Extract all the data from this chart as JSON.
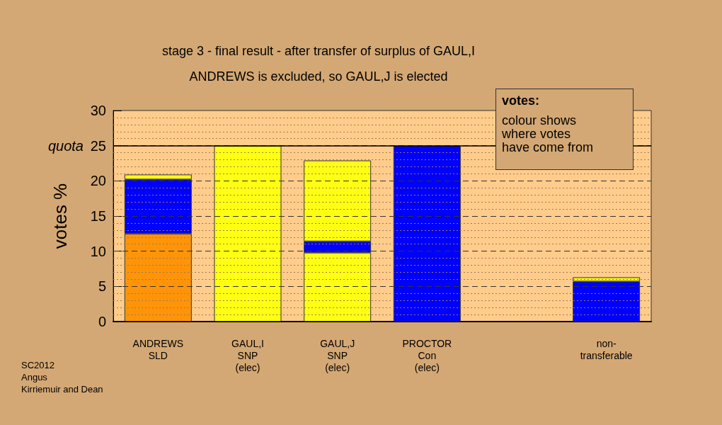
{
  "chart_data": {
    "type": "bar",
    "stacked": true,
    "title": "stage 3 - final result - after transfer of surplus of GAUL,I",
    "subtitle": "ANDREWS is excluded, so GAUL,J is elected",
    "ylabel": "votes %",
    "categories": [
      "ANDREWS\nSLD",
      "GAUL,I\nSNP\n(elec)",
      "GAUL,J\nSNP\n(elec)",
      "PROCTOR\nCon\n(elec)",
      null,
      "non-\ntransferable"
    ],
    "series": [
      {
        "values": [
          12.5,
          25,
          9.8,
          25,
          null,
          5.7
        ],
        "colors": [
          "#ff9408",
          "#ffff14",
          "#ffff14",
          "#0000ff",
          "#0000ff",
          "#0000ff"
        ]
      },
      {
        "values": [
          7.7,
          null,
          1.6,
          null,
          null,
          0.6
        ],
        "colors": [
          "#0000ff",
          "#0000ff",
          "#0000ff",
          "#0000ff",
          "#0000ff",
          "#ffff14"
        ]
      },
      {
        "values": [
          0.7,
          null,
          11.5,
          null,
          null,
          null
        ],
        "colors": [
          "#ffff14",
          "#ffff14",
          "#ffff14",
          "#ffff14",
          "#ffff14",
          "#ffff14"
        ]
      }
    ],
    "ylim": [
      0,
      30
    ],
    "yticks": [
      0,
      {
        "value": 1,
        "label": null
      },
      {
        "value": 2,
        "label": null
      },
      {
        "value": 3,
        "label": null
      },
      {
        "value": 4,
        "label": null
      },
      5,
      {
        "value": 6,
        "label": null
      },
      {
        "value": 7,
        "label": null
      },
      {
        "value": 8,
        "label": null
      },
      {
        "value": 9,
        "label": null
      },
      10,
      {
        "value": 11,
        "label": null
      },
      {
        "value": 12,
        "label": null
      },
      {
        "value": 13,
        "label": null
      },
      {
        "value": 14,
        "label": null
      },
      15,
      {
        "value": 16,
        "label": null
      },
      {
        "value": 17,
        "label": null
      },
      {
        "value": 18,
        "label": null
      },
      {
        "value": 19,
        "label": null
      },
      20,
      {
        "value": 21,
        "label": null
      },
      {
        "value": 22,
        "label": null
      },
      {
        "value": 23,
        "label": null
      },
      {
        "value": 24,
        "label": null
      },
      25,
      {
        "value": 26,
        "label": null
      },
      {
        "value": 27,
        "label": null
      },
      {
        "value": 28,
        "label": null
      },
      {
        "value": 29,
        "label": null
      },
      30
    ],
    "grid": "y",
    "ref_lines": [
      {
        "axis": "y",
        "value": 25,
        "label": "quota",
        "color": "#000000",
        "line_style": "solid"
      }
    ],
    "annotations": [
      "votes:",
      "colour shows\nwhere votes\nhave come from",
      "SC2012\nAngus\nKirriemuir and Dean"
    ]
  }
}
